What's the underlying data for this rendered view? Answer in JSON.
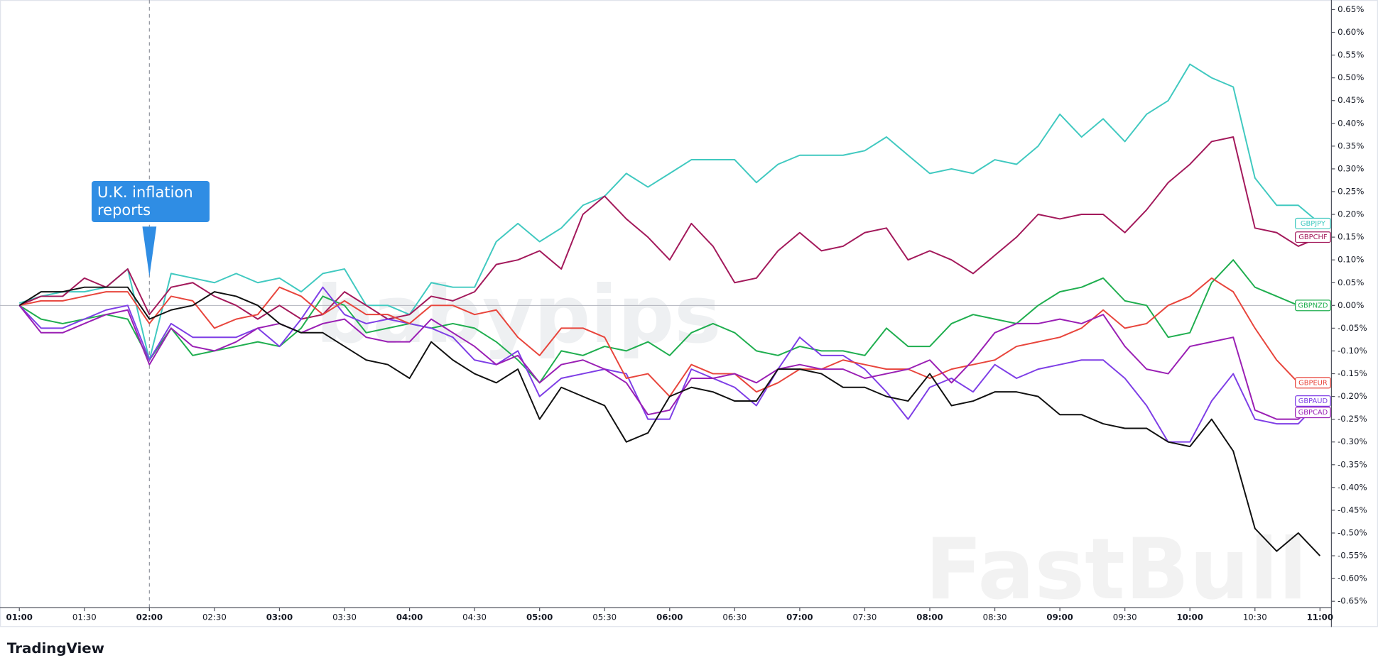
{
  "chart_data": {
    "type": "line",
    "annotation": "U.K. inflation reports",
    "watermarks": [
      "babypips",
      "FastBull"
    ],
    "brand": "TradingView",
    "categories": [
      "01:00",
      null,
      null,
      "01:30",
      null,
      null,
      "02:00",
      null,
      null,
      "02:30",
      null,
      null,
      "03:00",
      null,
      null,
      "03:30",
      null,
      null,
      "04:00",
      null,
      null,
      "04:30",
      null,
      null,
      "05:00",
      null,
      null,
      "05:30",
      null,
      null,
      "06:00",
      null,
      null,
      "06:30",
      null,
      null,
      "07:00",
      null,
      null,
      "07:30",
      null,
      null,
      "08:00",
      null,
      null,
      "08:30",
      null,
      null,
      "09:00",
      null,
      null,
      "09:30",
      null,
      null,
      "10:00",
      null,
      null,
      "10:30",
      null,
      null,
      "11:00"
    ],
    "ylim": [
      -0.664,
      0.671
    ],
    "yticks": [
      {
        "value": 0.65,
        "label": "0.65%"
      },
      {
        "value": 0.6,
        "label": "0.60%"
      },
      {
        "value": 0.55,
        "label": "0.55%"
      },
      {
        "value": 0.5,
        "label": "0.50%"
      },
      {
        "value": 0.45,
        "label": "0.45%"
      },
      {
        "value": 0.4,
        "label": "0.40%"
      },
      {
        "value": 0.35,
        "label": "0.35%"
      },
      {
        "value": 0.3,
        "label": "0.30%"
      },
      {
        "value": 0.25,
        "label": "0.25%"
      },
      {
        "value": 0.2,
        "label": "0.20%"
      },
      {
        "value": 0.15,
        "label": "0.15%"
      },
      {
        "value": 0.1,
        "label": "0.10%"
      },
      {
        "value": 0.05,
        "label": "0.05%"
      },
      {
        "value": 0,
        "label": "0.00%"
      },
      {
        "value": -0.05,
        "label": "-0.05%"
      },
      {
        "value": -0.1,
        "label": "-0.10%"
      },
      {
        "value": -0.15,
        "label": "-0.15%"
      },
      {
        "value": -0.2,
        "label": "-0.20%"
      },
      {
        "value": -0.25,
        "label": "-0.25%"
      },
      {
        "value": -0.3,
        "label": "-0.30%"
      },
      {
        "value": -0.35,
        "label": "-0.35%"
      },
      {
        "value": -0.4,
        "label": "-0.40%"
      },
      {
        "value": -0.45,
        "label": "-0.45%"
      },
      {
        "value": -0.5,
        "label": "-0.50%"
      },
      {
        "value": -0.55,
        "label": "-0.55%"
      },
      {
        "value": -0.6,
        "label": "-0.60%"
      },
      {
        "value": -0.65,
        "label": "-0.65%"
      }
    ],
    "series": [
      {
        "name": "GBPJPY",
        "color": "#40c9c0",
        "values": [
          0.005,
          0.02,
          0.03,
          0.03,
          0.04,
          0.08,
          -0.12,
          0.07,
          0.06,
          0.05,
          0.07,
          0.05,
          0.06,
          0.03,
          0.07,
          0.08,
          0.0,
          0.0,
          -0.02,
          0.05,
          0.04,
          0.04,
          0.14,
          0.18,
          0.14,
          0.17,
          0.22,
          0.24,
          0.29,
          0.26,
          0.29,
          0.32,
          0.32,
          0.32,
          0.27,
          0.31,
          0.33,
          0.33,
          0.33,
          0.34,
          0.37,
          0.33,
          0.29,
          0.3,
          0.29,
          0.32,
          0.31,
          0.35,
          0.42,
          0.37,
          0.41,
          0.36,
          0.42,
          0.45,
          0.53,
          0.5,
          0.48,
          0.28,
          0.22,
          0.22,
          0.18
        ]
      },
      {
        "name": "GBPCHF",
        "color": "#a3195b",
        "values": [
          0.0,
          0.02,
          0.02,
          0.06,
          0.04,
          0.08,
          -0.02,
          0.04,
          0.05,
          0.02,
          0.0,
          -0.03,
          0.0,
          -0.03,
          -0.02,
          0.03,
          0.0,
          -0.03,
          -0.02,
          0.02,
          0.01,
          0.03,
          0.09,
          0.1,
          0.12,
          0.08,
          0.2,
          0.24,
          0.19,
          0.15,
          0.1,
          0.18,
          0.13,
          0.05,
          0.06,
          0.12,
          0.16,
          0.12,
          0.13,
          0.16,
          0.17,
          0.1,
          0.12,
          0.1,
          0.07,
          0.11,
          0.15,
          0.2,
          0.19,
          0.2,
          0.2,
          0.16,
          0.21,
          0.27,
          0.31,
          0.36,
          0.37,
          0.17,
          0.16,
          0.13,
          0.15
        ]
      },
      {
        "name": "GBPNZD",
        "color": "#1fae4f",
        "values": [
          0.0,
          -0.03,
          -0.04,
          -0.03,
          -0.02,
          -0.03,
          -0.12,
          -0.05,
          -0.11,
          -0.1,
          -0.09,
          -0.08,
          -0.09,
          -0.05,
          0.02,
          0.0,
          -0.06,
          -0.05,
          -0.04,
          -0.05,
          -0.04,
          -0.05,
          -0.08,
          -0.12,
          -0.17,
          -0.1,
          -0.11,
          -0.09,
          -0.1,
          -0.08,
          -0.11,
          -0.06,
          -0.04,
          -0.06,
          -0.1,
          -0.11,
          -0.09,
          -0.1,
          -0.1,
          -0.11,
          -0.05,
          -0.09,
          -0.09,
          -0.04,
          -0.02,
          -0.03,
          -0.04,
          0.0,
          0.03,
          0.04,
          0.06,
          0.01,
          0.0,
          -0.07,
          -0.06,
          0.05,
          0.1,
          0.04,
          0.02,
          0.0,
          0.0
        ]
      },
      {
        "name": "GBPAUD",
        "color": "#7e3ee6",
        "values": [
          0.0,
          -0.05,
          -0.05,
          -0.03,
          -0.01,
          0.0,
          -0.12,
          -0.04,
          -0.07,
          -0.07,
          -0.07,
          -0.05,
          -0.09,
          -0.03,
          0.04,
          -0.02,
          -0.04,
          -0.03,
          -0.04,
          -0.05,
          -0.07,
          -0.12,
          -0.13,
          -0.1,
          -0.2,
          -0.16,
          -0.15,
          -0.14,
          -0.15,
          -0.25,
          -0.25,
          -0.14,
          -0.16,
          -0.18,
          -0.22,
          -0.14,
          -0.07,
          -0.11,
          -0.11,
          -0.14,
          -0.19,
          -0.25,
          -0.18,
          -0.16,
          -0.19,
          -0.13,
          -0.16,
          -0.14,
          -0.13,
          -0.12,
          -0.12,
          -0.16,
          -0.22,
          -0.3,
          -0.3,
          -0.21,
          -0.15,
          -0.25,
          -0.26,
          -0.26,
          -0.21
        ]
      },
      {
        "name": "GBPEUR",
        "color": "#e8453c",
        "values": [
          0.0,
          0.01,
          0.01,
          0.02,
          0.03,
          0.03,
          -0.04,
          0.02,
          0.01,
          -0.05,
          -0.03,
          -0.02,
          0.04,
          0.02,
          -0.02,
          0.01,
          -0.02,
          -0.02,
          -0.04,
          0.0,
          0.0,
          -0.02,
          -0.01,
          -0.07,
          -0.11,
          -0.05,
          -0.05,
          -0.07,
          -0.16,
          -0.15,
          -0.2,
          -0.13,
          -0.15,
          -0.15,
          -0.19,
          -0.17,
          -0.14,
          -0.14,
          -0.12,
          -0.13,
          -0.14,
          -0.14,
          -0.16,
          -0.14,
          -0.13,
          -0.12,
          -0.09,
          -0.08,
          -0.07,
          -0.05,
          -0.01,
          -0.05,
          -0.04,
          0.0,
          0.02,
          0.06,
          0.03,
          -0.05,
          -0.12,
          -0.17,
          -0.17
        ]
      },
      {
        "name": "GBPCAD",
        "color": "#9a1fb4",
        "values": [
          0.0,
          -0.06,
          -0.06,
          -0.04,
          -0.02,
          -0.01,
          -0.13,
          -0.05,
          -0.09,
          -0.1,
          -0.08,
          -0.05,
          -0.04,
          -0.06,
          -0.04,
          -0.03,
          -0.07,
          -0.08,
          -0.08,
          -0.03,
          -0.06,
          -0.09,
          -0.13,
          -0.11,
          -0.17,
          -0.13,
          -0.12,
          -0.14,
          -0.17,
          -0.24,
          -0.23,
          -0.16,
          -0.16,
          -0.15,
          -0.17,
          -0.14,
          -0.13,
          -0.14,
          -0.14,
          -0.16,
          -0.15,
          -0.14,
          -0.12,
          -0.17,
          -0.12,
          -0.06,
          -0.04,
          -0.04,
          -0.03,
          -0.04,
          -0.02,
          -0.09,
          -0.14,
          -0.15,
          -0.09,
          -0.08,
          -0.07,
          -0.23,
          -0.25,
          -0.25,
          -0.21
        ]
      },
      {
        "color": "#111111",
        "values": [
          0.0,
          0.03,
          0.03,
          0.04,
          0.04,
          0.04,
          -0.03,
          -0.01,
          0.0,
          0.03,
          0.02,
          0.0,
          -0.04,
          -0.06,
          -0.06,
          -0.09,
          -0.12,
          -0.13,
          -0.16,
          -0.08,
          -0.12,
          -0.15,
          -0.17,
          -0.14,
          -0.25,
          -0.18,
          -0.2,
          -0.22,
          -0.3,
          -0.28,
          -0.2,
          -0.18,
          -0.19,
          -0.21,
          -0.21,
          -0.14,
          -0.14,
          -0.15,
          -0.18,
          -0.18,
          -0.2,
          -0.21,
          -0.15,
          -0.22,
          -0.21,
          -0.19,
          -0.19,
          -0.2,
          -0.24,
          -0.24,
          -0.26,
          -0.27,
          -0.27,
          -0.3,
          -0.31,
          -0.25,
          -0.32,
          -0.49,
          -0.54,
          -0.5,
          -0.55
        ]
      }
    ]
  }
}
